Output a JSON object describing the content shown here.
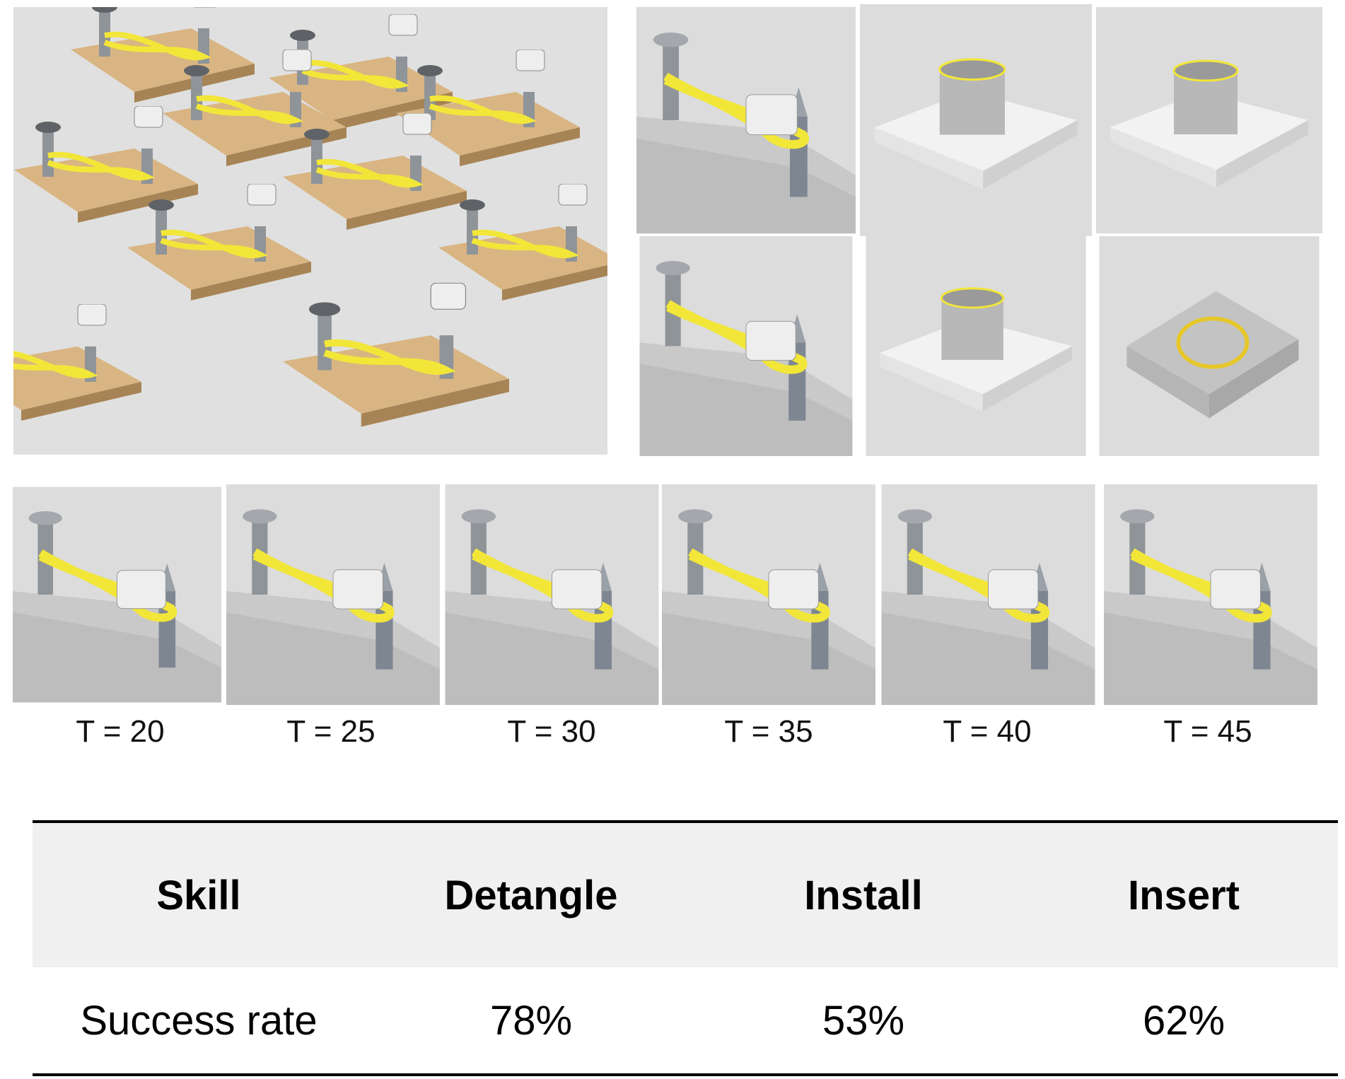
{
  "timeline": {
    "labels": [
      "T = 20",
      "T = 25",
      "T = 30",
      "T = 35",
      "T = 40",
      "T = 45"
    ]
  },
  "table": {
    "header": [
      "Skill",
      "Detangle",
      "Install",
      "Insert"
    ],
    "rows": [
      [
        "Success rate",
        "78%",
        "53%",
        "62%"
      ]
    ]
  }
}
